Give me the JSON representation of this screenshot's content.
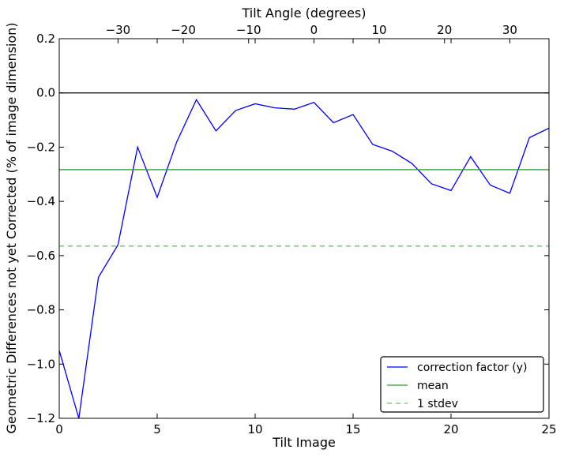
{
  "chart_data": {
    "type": "line",
    "xlabel": "Tilt Image",
    "ylabel": "Geometric Differences not yet Corrected (% of image dimension)",
    "top_xlabel": "Tilt Angle (degrees)",
    "xlim": [
      0,
      25
    ],
    "ylim": [
      -1.2,
      0.2
    ],
    "top_xlim": [
      -39,
      36
    ],
    "x_ticks": [
      0,
      5,
      10,
      15,
      20,
      25
    ],
    "x_tick_labels": [
      "0",
      "5",
      "10",
      "15",
      "20",
      "25"
    ],
    "y_ticks": [
      0.2,
      0.0,
      -0.2,
      -0.4,
      -0.6,
      -0.8,
      -1.0,
      -1.2
    ],
    "y_tick_labels": [
      "0.2",
      "0.0",
      "−0.2",
      "−0.4",
      "−0.6",
      "−0.8",
      "−1.0",
      "−1.2"
    ],
    "top_x_ticks": [
      -30,
      -20,
      -10,
      0,
      10,
      20,
      30
    ],
    "top_x_tick_labels": [
      "−30",
      "−20",
      "−10",
      "0",
      "10",
      "20",
      "30"
    ],
    "grid": false,
    "legend_position": "bottom-right",
    "series": [
      {
        "name": "correction factor (y)",
        "color": "#0000ff",
        "style": "solid",
        "x": [
          0,
          1,
          2,
          3,
          4,
          5,
          6,
          7,
          8,
          9,
          10,
          11,
          12,
          13,
          14,
          15,
          16,
          17,
          18,
          19,
          20,
          21,
          22,
          23,
          24,
          25
        ],
        "y": [
          -0.95,
          -1.2,
          -0.68,
          -0.56,
          -0.2,
          -0.385,
          -0.18,
          -0.025,
          -0.14,
          -0.065,
          -0.04,
          -0.055,
          -0.06,
          -0.035,
          -0.11,
          -0.08,
          -0.19,
          -0.215,
          -0.26,
          -0.335,
          -0.36,
          -0.235,
          -0.34,
          -0.37,
          -0.165,
          -0.13
        ]
      },
      {
        "name": "mean",
        "color": "#2ca02c",
        "style": "solid",
        "x": [
          0,
          25
        ],
        "y": [
          -0.283,
          -0.283
        ]
      },
      {
        "name": "1 stdev",
        "color": "#66c266",
        "style": "dashed",
        "x": [
          0,
          25
        ],
        "y": [
          -0.565,
          -0.565
        ]
      }
    ],
    "reference_lines": [
      {
        "y": 0.0,
        "color": "#000000"
      }
    ]
  }
}
